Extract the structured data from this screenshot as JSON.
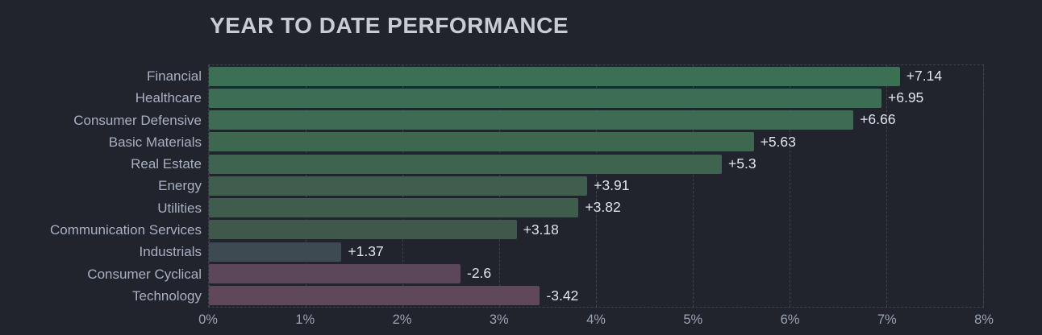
{
  "title": "YEAR TO DATE PERFORMANCE",
  "colors": {
    "background": "#21242d",
    "title": "#c8ccd5",
    "category_label": "#a8b1c2",
    "value_label": "#e2e5ea",
    "tick_label": "#9aa3b3",
    "grid": "#3b4250",
    "positive_strong": "#3c7054",
    "neutral": "#3e4a52",
    "negative": "#5d4759"
  },
  "chart_data": {
    "type": "bar",
    "orientation": "horizontal",
    "title": "YEAR TO DATE PERFORMANCE",
    "categories": [
      "Financial",
      "Healthcare",
      "Consumer Defensive",
      "Basic Materials",
      "Real Estate",
      "Energy",
      "Utilities",
      "Communication Services",
      "Industrials",
      "Consumer Cyclical",
      "Technology"
    ],
    "values": [
      7.14,
      6.95,
      6.66,
      5.63,
      5.3,
      3.91,
      3.82,
      3.18,
      1.37,
      -2.6,
      -3.42
    ],
    "value_labels": [
      "+7.14",
      "+6.95",
      "+6.66",
      "+5.63",
      "+5.3",
      "+3.91",
      "+3.82",
      "+3.18",
      "+1.37",
      "-2.6",
      "-3.42"
    ],
    "bar_colors": [
      "#3c7054",
      "#3c6e53",
      "#3d6c52",
      "#3e6750",
      "#3e6450",
      "#3f5e4e",
      "#3f5d4d",
      "#40584c",
      "#3e4a52",
      "#5c4659",
      "#5e4859"
    ],
    "x_ticks": [
      "0%",
      "1%",
      "2%",
      "3%",
      "4%",
      "5%",
      "6%",
      "7%",
      "8%"
    ],
    "xlabel": "",
    "ylabel": "",
    "xlim": [
      0,
      8
    ],
    "grid": "vertical-dashed",
    "legend": "none",
    "negative_bars_plotted_as_absolute_length": true
  }
}
